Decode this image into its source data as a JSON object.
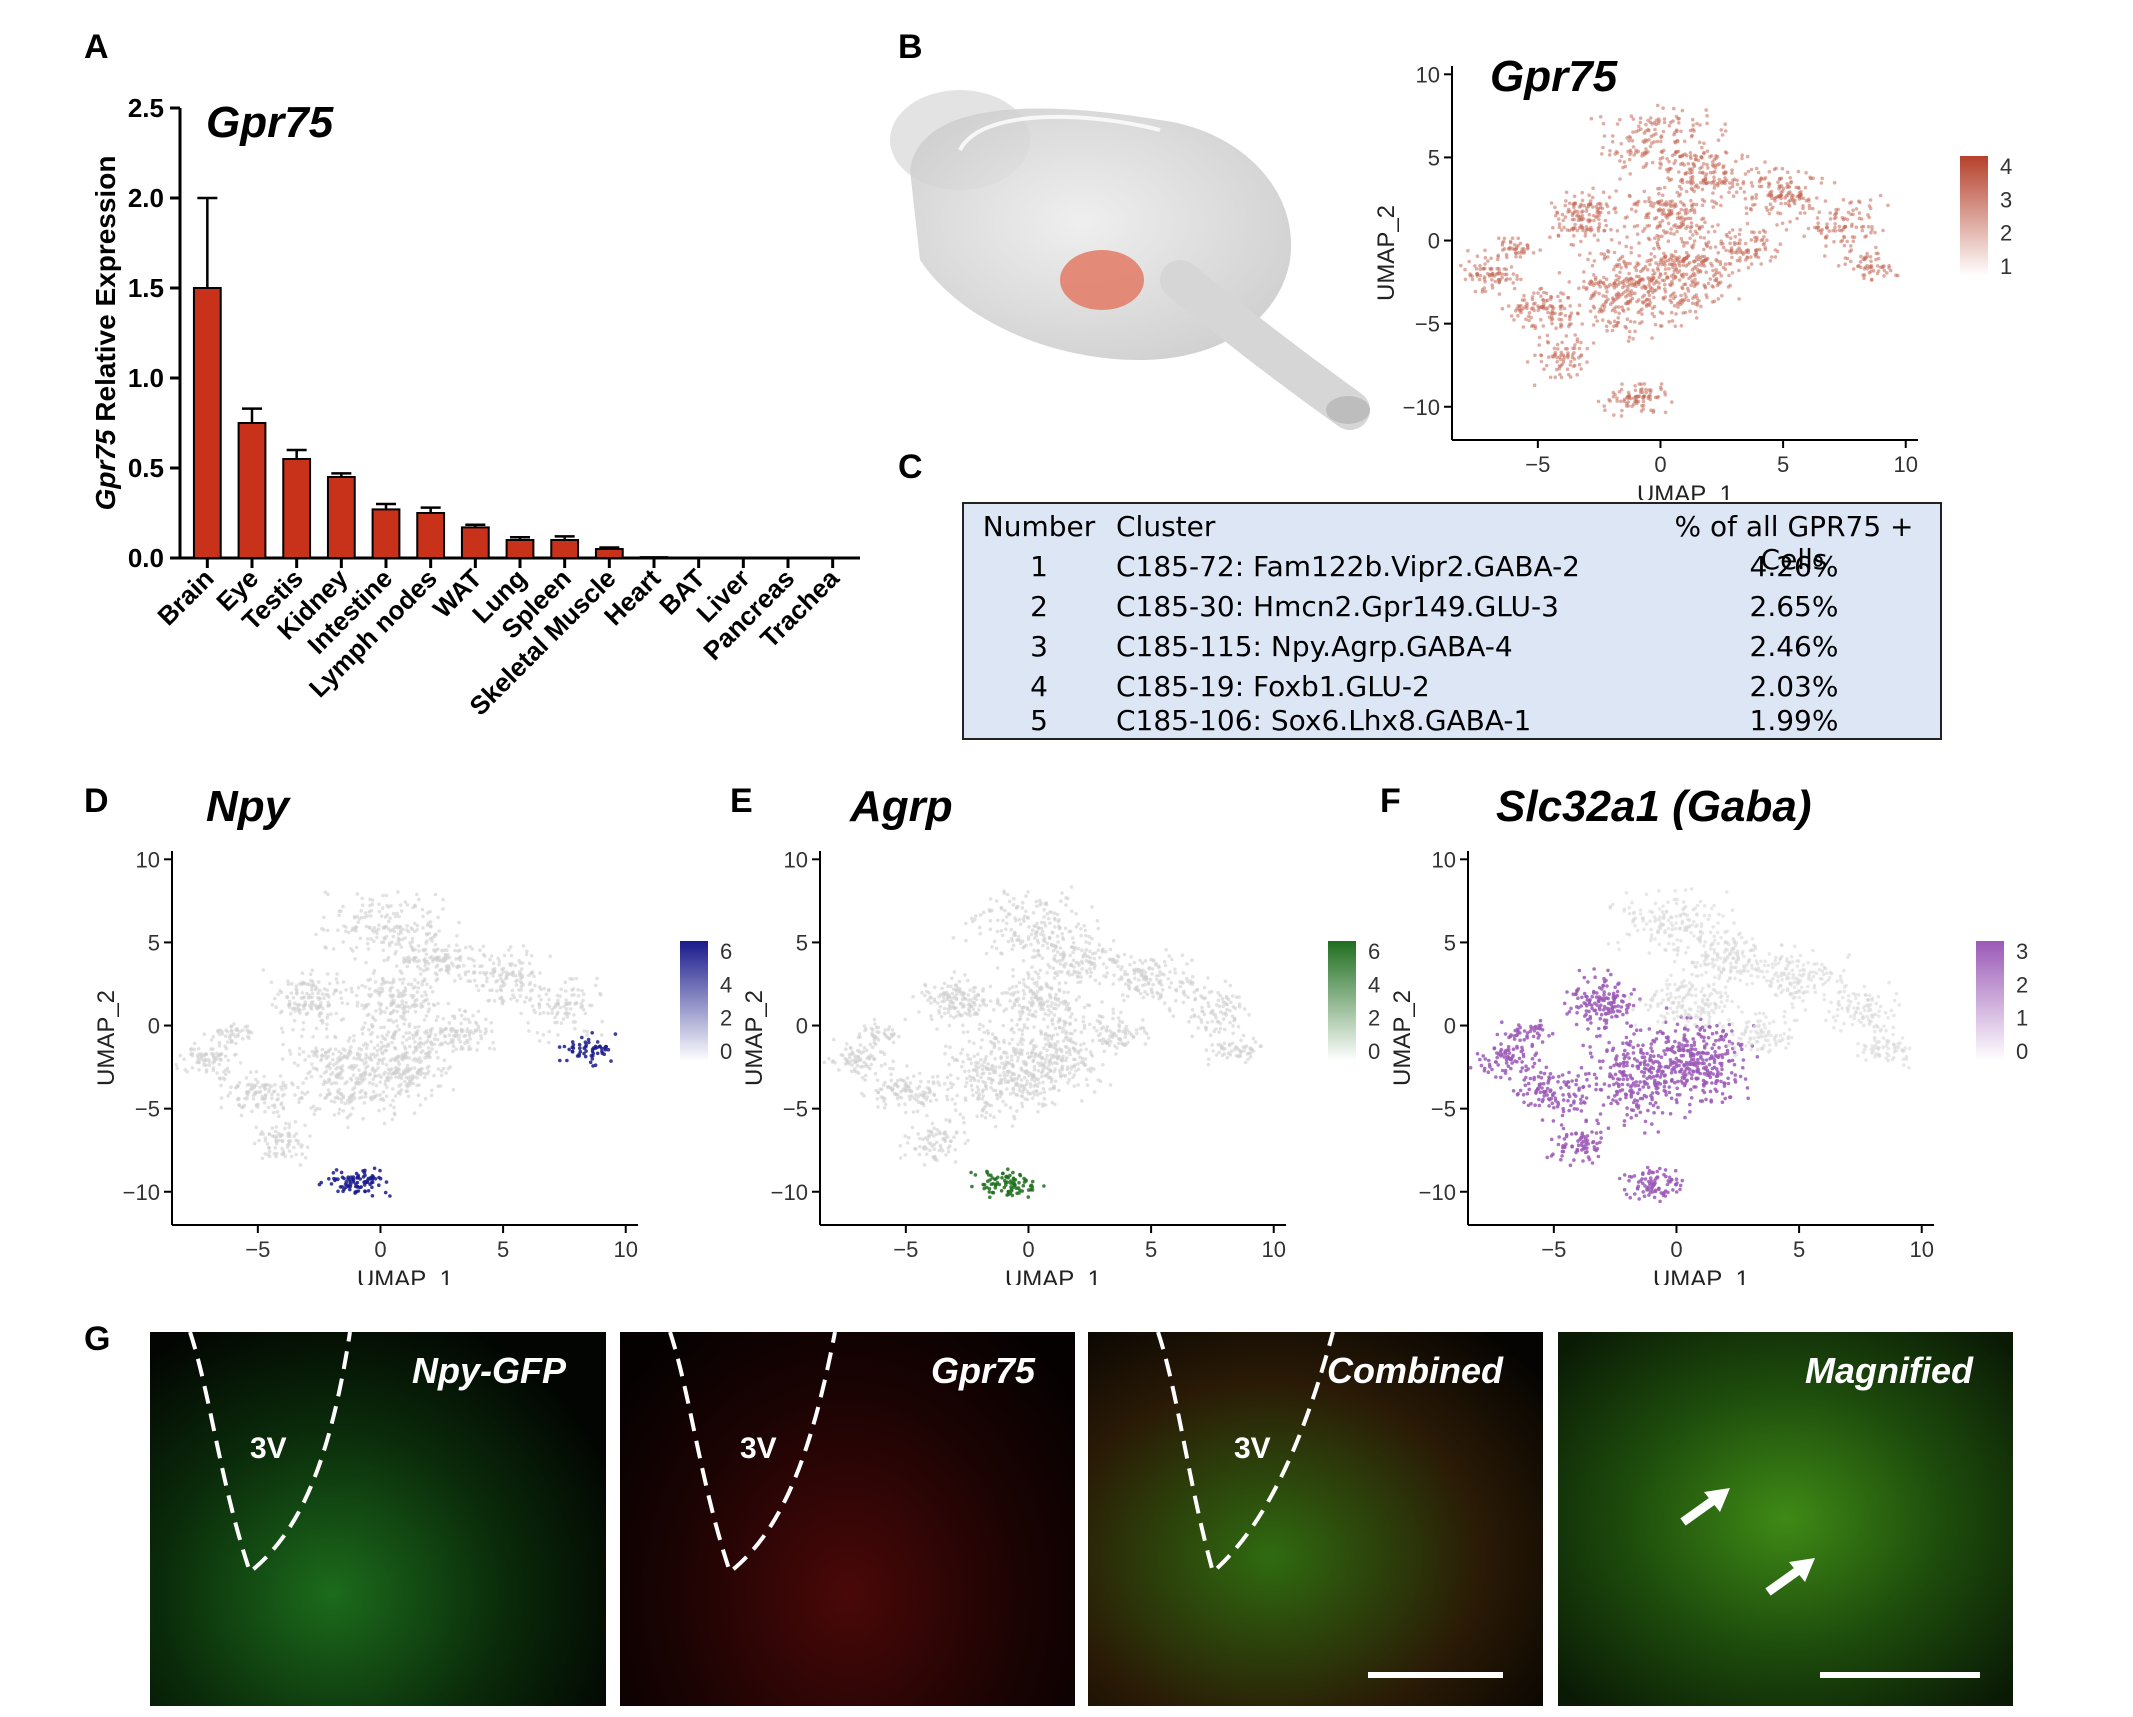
{
  "panels": {
    "A": "A",
    "B": "B",
    "C": "C",
    "D": "D",
    "E": "E",
    "F": "F",
    "G": "G"
  },
  "panel_a": {
    "title": "Gpr75",
    "ylabel_italic": "Gpr75",
    "ylabel_rest": " Relative Expression"
  },
  "chart_data": [
    {
      "type": "bar",
      "title": "Gpr75",
      "ylabel": "Gpr75 Relative Expression",
      "categories": [
        "Brain",
        "Eye",
        "Testis",
        "Kidney",
        "Intestine",
        "Lymph nodes",
        "WAT",
        "Lung",
        "Spleen",
        "Skeletal Muscle",
        "Heart",
        "BAT",
        "Liver",
        "Pancreas",
        "Trachea"
      ],
      "values": [
        1.5,
        0.75,
        0.55,
        0.45,
        0.27,
        0.25,
        0.17,
        0.1,
        0.1,
        0.05,
        0.005,
        0,
        0,
        0,
        0
      ],
      "errors": [
        0.5,
        0.08,
        0.05,
        0.02,
        0.03,
        0.03,
        0.015,
        0.015,
        0.02,
        0.008,
        0,
        0,
        0,
        0,
        0
      ],
      "ylim": [
        0,
        2.5
      ],
      "yticks": [
        "0.0",
        "0.5",
        "1.0",
        "1.5",
        "2.0",
        "2.5"
      ],
      "color": "#c8321a"
    },
    {
      "type": "scatter",
      "title": "Gpr75",
      "xlabel": "UMAP_1",
      "ylabel": "UMAP_2",
      "xticks": [
        "−5",
        "0",
        "5",
        "10"
      ],
      "yticks": [
        "−10",
        "−5",
        "0",
        "5",
        "10"
      ],
      "legend": [
        "1",
        "2",
        "3",
        "4"
      ],
      "color": "#b5412c"
    },
    {
      "type": "scatter",
      "title": "Npy",
      "xlabel": "UMAP_1",
      "ylabel": "UMAP_2",
      "xticks": [
        "−5",
        "0",
        "5",
        "10"
      ],
      "yticks": [
        "−10",
        "−5",
        "0",
        "5",
        "10"
      ],
      "legend": [
        "0",
        "2",
        "4",
        "6"
      ],
      "color": "#1a1a8c"
    },
    {
      "type": "scatter",
      "title": "Agrp",
      "xlabel": "UMAP_1",
      "ylabel": "UMAP_2",
      "xticks": [
        "−5",
        "0",
        "5",
        "10"
      ],
      "yticks": [
        "−10",
        "−5",
        "0",
        "5",
        "10"
      ],
      "legend": [
        "0",
        "2",
        "4",
        "6"
      ],
      "color": "#1f6e1f"
    },
    {
      "type": "scatter",
      "title": "Slc32a1 (Gaba)",
      "xlabel": "UMAP_1",
      "ylabel": "UMAP_2",
      "xticks": [
        "−5",
        "0",
        "5",
        "10"
      ],
      "yticks": [
        "−10",
        "−5",
        "0",
        "5",
        "10"
      ],
      "legend": [
        "0",
        "1",
        "2",
        "3"
      ],
      "color": "#9b59b6"
    }
  ],
  "table": {
    "headers": [
      "Number",
      "Cluster",
      "% of all GPR75 + Cells"
    ],
    "rows": [
      [
        "1",
        "C185-72: Fam122b.Vipr2.GABA-2",
        "4.26%"
      ],
      [
        "2",
        "C185-30: Hmcn2.Gpr149.GLU-3",
        "2.65%"
      ],
      [
        "3",
        "C185-115: Npy.Agrp.GABA-4",
        "2.46%"
      ],
      [
        "4",
        "C185-19: Foxb1.GLU-2",
        "2.03%"
      ],
      [
        "5",
        "C185-106: Sox6.Lhx8.GABA-1",
        "1.99%"
      ]
    ]
  },
  "micrographs": [
    {
      "label": "Npy-GFP",
      "ventricle": "3V"
    },
    {
      "label": "Gpr75",
      "ventricle": "3V"
    },
    {
      "label": "Combined",
      "ventricle": "3V"
    },
    {
      "label": "Magnified"
    }
  ]
}
